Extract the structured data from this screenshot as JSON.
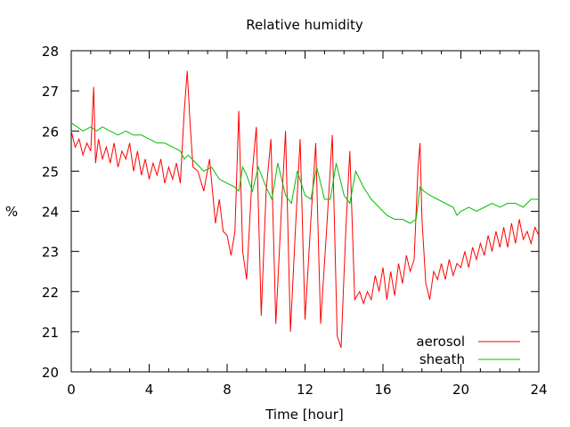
{
  "chart_data": {
    "type": "line",
    "title": "Relative humidity",
    "xlabel": "Time [hour]",
    "ylabel": "%",
    "xlim": [
      0,
      24
    ],
    "ylim": [
      20,
      28
    ],
    "xticks": [
      0,
      4,
      8,
      12,
      16,
      20,
      24
    ],
    "yticks": [
      20,
      21,
      22,
      23,
      24,
      25,
      26,
      27,
      28
    ],
    "grid": false,
    "legend_position": "bottom-right",
    "series": [
      {
        "name": "aerosol",
        "color": "#ff0000",
        "points": [
          [
            0.0,
            26.0
          ],
          [
            0.2,
            25.6
          ],
          [
            0.4,
            25.8
          ],
          [
            0.6,
            25.4
          ],
          [
            0.8,
            25.7
          ],
          [
            1.0,
            25.5
          ],
          [
            1.15,
            27.1
          ],
          [
            1.25,
            25.2
          ],
          [
            1.4,
            25.8
          ],
          [
            1.6,
            25.3
          ],
          [
            1.8,
            25.6
          ],
          [
            2.0,
            25.2
          ],
          [
            2.2,
            25.7
          ],
          [
            2.4,
            25.1
          ],
          [
            2.6,
            25.5
          ],
          [
            2.8,
            25.3
          ],
          [
            3.0,
            25.7
          ],
          [
            3.2,
            25.0
          ],
          [
            3.4,
            25.5
          ],
          [
            3.6,
            24.9
          ],
          [
            3.8,
            25.3
          ],
          [
            4.0,
            24.8
          ],
          [
            4.2,
            25.2
          ],
          [
            4.4,
            24.9
          ],
          [
            4.6,
            25.3
          ],
          [
            4.8,
            24.7
          ],
          [
            5.0,
            25.1
          ],
          [
            5.2,
            24.8
          ],
          [
            5.4,
            25.2
          ],
          [
            5.6,
            24.7
          ],
          [
            5.8,
            26.5
          ],
          [
            5.95,
            27.5
          ],
          [
            6.1,
            26.2
          ],
          [
            6.25,
            25.1
          ],
          [
            6.5,
            25.0
          ],
          [
            6.8,
            24.5
          ],
          [
            7.1,
            25.3
          ],
          [
            7.4,
            23.7
          ],
          [
            7.6,
            24.3
          ],
          [
            7.8,
            23.5
          ],
          [
            8.0,
            23.4
          ],
          [
            8.2,
            22.9
          ],
          [
            8.4,
            23.5
          ],
          [
            8.6,
            26.5
          ],
          [
            8.8,
            23.0
          ],
          [
            9.0,
            22.3
          ],
          [
            9.3,
            25.0
          ],
          [
            9.5,
            26.1
          ],
          [
            9.75,
            21.4
          ],
          [
            10.0,
            24.5
          ],
          [
            10.25,
            25.8
          ],
          [
            10.5,
            21.2
          ],
          [
            10.8,
            24.2
          ],
          [
            11.0,
            26.0
          ],
          [
            11.25,
            21.0
          ],
          [
            11.5,
            23.5
          ],
          [
            11.75,
            25.8
          ],
          [
            12.0,
            21.3
          ],
          [
            12.3,
            23.8
          ],
          [
            12.55,
            25.7
          ],
          [
            12.8,
            21.2
          ],
          [
            13.1,
            23.5
          ],
          [
            13.4,
            25.9
          ],
          [
            13.65,
            20.9
          ],
          [
            13.85,
            20.6
          ],
          [
            14.1,
            23.6
          ],
          [
            14.3,
            25.5
          ],
          [
            14.55,
            21.8
          ],
          [
            14.8,
            22.0
          ],
          [
            15.0,
            21.7
          ],
          [
            15.2,
            22.0
          ],
          [
            15.4,
            21.8
          ],
          [
            15.6,
            22.4
          ],
          [
            15.8,
            22.0
          ],
          [
            16.0,
            22.6
          ],
          [
            16.2,
            21.8
          ],
          [
            16.4,
            22.5
          ],
          [
            16.6,
            21.9
          ],
          [
            16.8,
            22.7
          ],
          [
            17.0,
            22.2
          ],
          [
            17.2,
            22.9
          ],
          [
            17.4,
            22.5
          ],
          [
            17.6,
            22.8
          ],
          [
            17.8,
            25.1
          ],
          [
            17.9,
            25.7
          ],
          [
            18.0,
            23.8
          ],
          [
            18.2,
            22.2
          ],
          [
            18.4,
            21.8
          ],
          [
            18.6,
            22.5
          ],
          [
            18.8,
            22.3
          ],
          [
            19.0,
            22.7
          ],
          [
            19.2,
            22.3
          ],
          [
            19.4,
            22.8
          ],
          [
            19.6,
            22.4
          ],
          [
            19.8,
            22.7
          ],
          [
            20.0,
            22.6
          ],
          [
            20.2,
            23.0
          ],
          [
            20.4,
            22.6
          ],
          [
            20.6,
            23.1
          ],
          [
            20.8,
            22.8
          ],
          [
            21.0,
            23.2
          ],
          [
            21.2,
            22.9
          ],
          [
            21.4,
            23.4
          ],
          [
            21.6,
            23.0
          ],
          [
            21.8,
            23.5
          ],
          [
            22.0,
            23.1
          ],
          [
            22.2,
            23.6
          ],
          [
            22.4,
            23.1
          ],
          [
            22.6,
            23.7
          ],
          [
            22.8,
            23.2
          ],
          [
            23.0,
            23.8
          ],
          [
            23.2,
            23.3
          ],
          [
            23.4,
            23.5
          ],
          [
            23.6,
            23.2
          ],
          [
            23.8,
            23.6
          ],
          [
            24.0,
            23.4
          ]
        ]
      },
      {
        "name": "sheath",
        "color": "#00c000",
        "points": [
          [
            0.0,
            26.2
          ],
          [
            0.3,
            26.1
          ],
          [
            0.6,
            26.0
          ],
          [
            1.0,
            26.1
          ],
          [
            1.3,
            26.0
          ],
          [
            1.6,
            26.1
          ],
          [
            2.0,
            26.0
          ],
          [
            2.4,
            25.9
          ],
          [
            2.8,
            26.0
          ],
          [
            3.2,
            25.9
          ],
          [
            3.6,
            25.9
          ],
          [
            4.0,
            25.8
          ],
          [
            4.4,
            25.7
          ],
          [
            4.8,
            25.7
          ],
          [
            5.2,
            25.6
          ],
          [
            5.6,
            25.5
          ],
          [
            5.8,
            25.3
          ],
          [
            6.0,
            25.4
          ],
          [
            6.4,
            25.2
          ],
          [
            6.8,
            25.0
          ],
          [
            7.2,
            25.1
          ],
          [
            7.6,
            24.8
          ],
          [
            8.0,
            24.7
          ],
          [
            8.4,
            24.6
          ],
          [
            8.6,
            24.5
          ],
          [
            8.8,
            25.1
          ],
          [
            9.0,
            24.9
          ],
          [
            9.3,
            24.5
          ],
          [
            9.6,
            25.1
          ],
          [
            10.0,
            24.6
          ],
          [
            10.3,
            24.3
          ],
          [
            10.6,
            25.2
          ],
          [
            11.0,
            24.4
          ],
          [
            11.3,
            24.2
          ],
          [
            11.6,
            25.0
          ],
          [
            12.0,
            24.4
          ],
          [
            12.3,
            24.3
          ],
          [
            12.6,
            25.1
          ],
          [
            13.0,
            24.3
          ],
          [
            13.3,
            24.3
          ],
          [
            13.6,
            25.2
          ],
          [
            14.0,
            24.4
          ],
          [
            14.3,
            24.2
          ],
          [
            14.6,
            25.0
          ],
          [
            15.0,
            24.6
          ],
          [
            15.4,
            24.3
          ],
          [
            15.8,
            24.1
          ],
          [
            16.2,
            23.9
          ],
          [
            16.6,
            23.8
          ],
          [
            17.0,
            23.8
          ],
          [
            17.4,
            23.7
          ],
          [
            17.7,
            23.8
          ],
          [
            17.9,
            24.6
          ],
          [
            18.1,
            24.5
          ],
          [
            18.4,
            24.4
          ],
          [
            18.8,
            24.3
          ],
          [
            19.2,
            24.2
          ],
          [
            19.6,
            24.1
          ],
          [
            19.8,
            23.9
          ],
          [
            20.0,
            24.0
          ],
          [
            20.4,
            24.1
          ],
          [
            20.8,
            24.0
          ],
          [
            21.2,
            24.1
          ],
          [
            21.6,
            24.2
          ],
          [
            22.0,
            24.1
          ],
          [
            22.4,
            24.2
          ],
          [
            22.8,
            24.2
          ],
          [
            23.2,
            24.1
          ],
          [
            23.6,
            24.3
          ],
          [
            24.0,
            24.3
          ]
        ]
      }
    ]
  }
}
